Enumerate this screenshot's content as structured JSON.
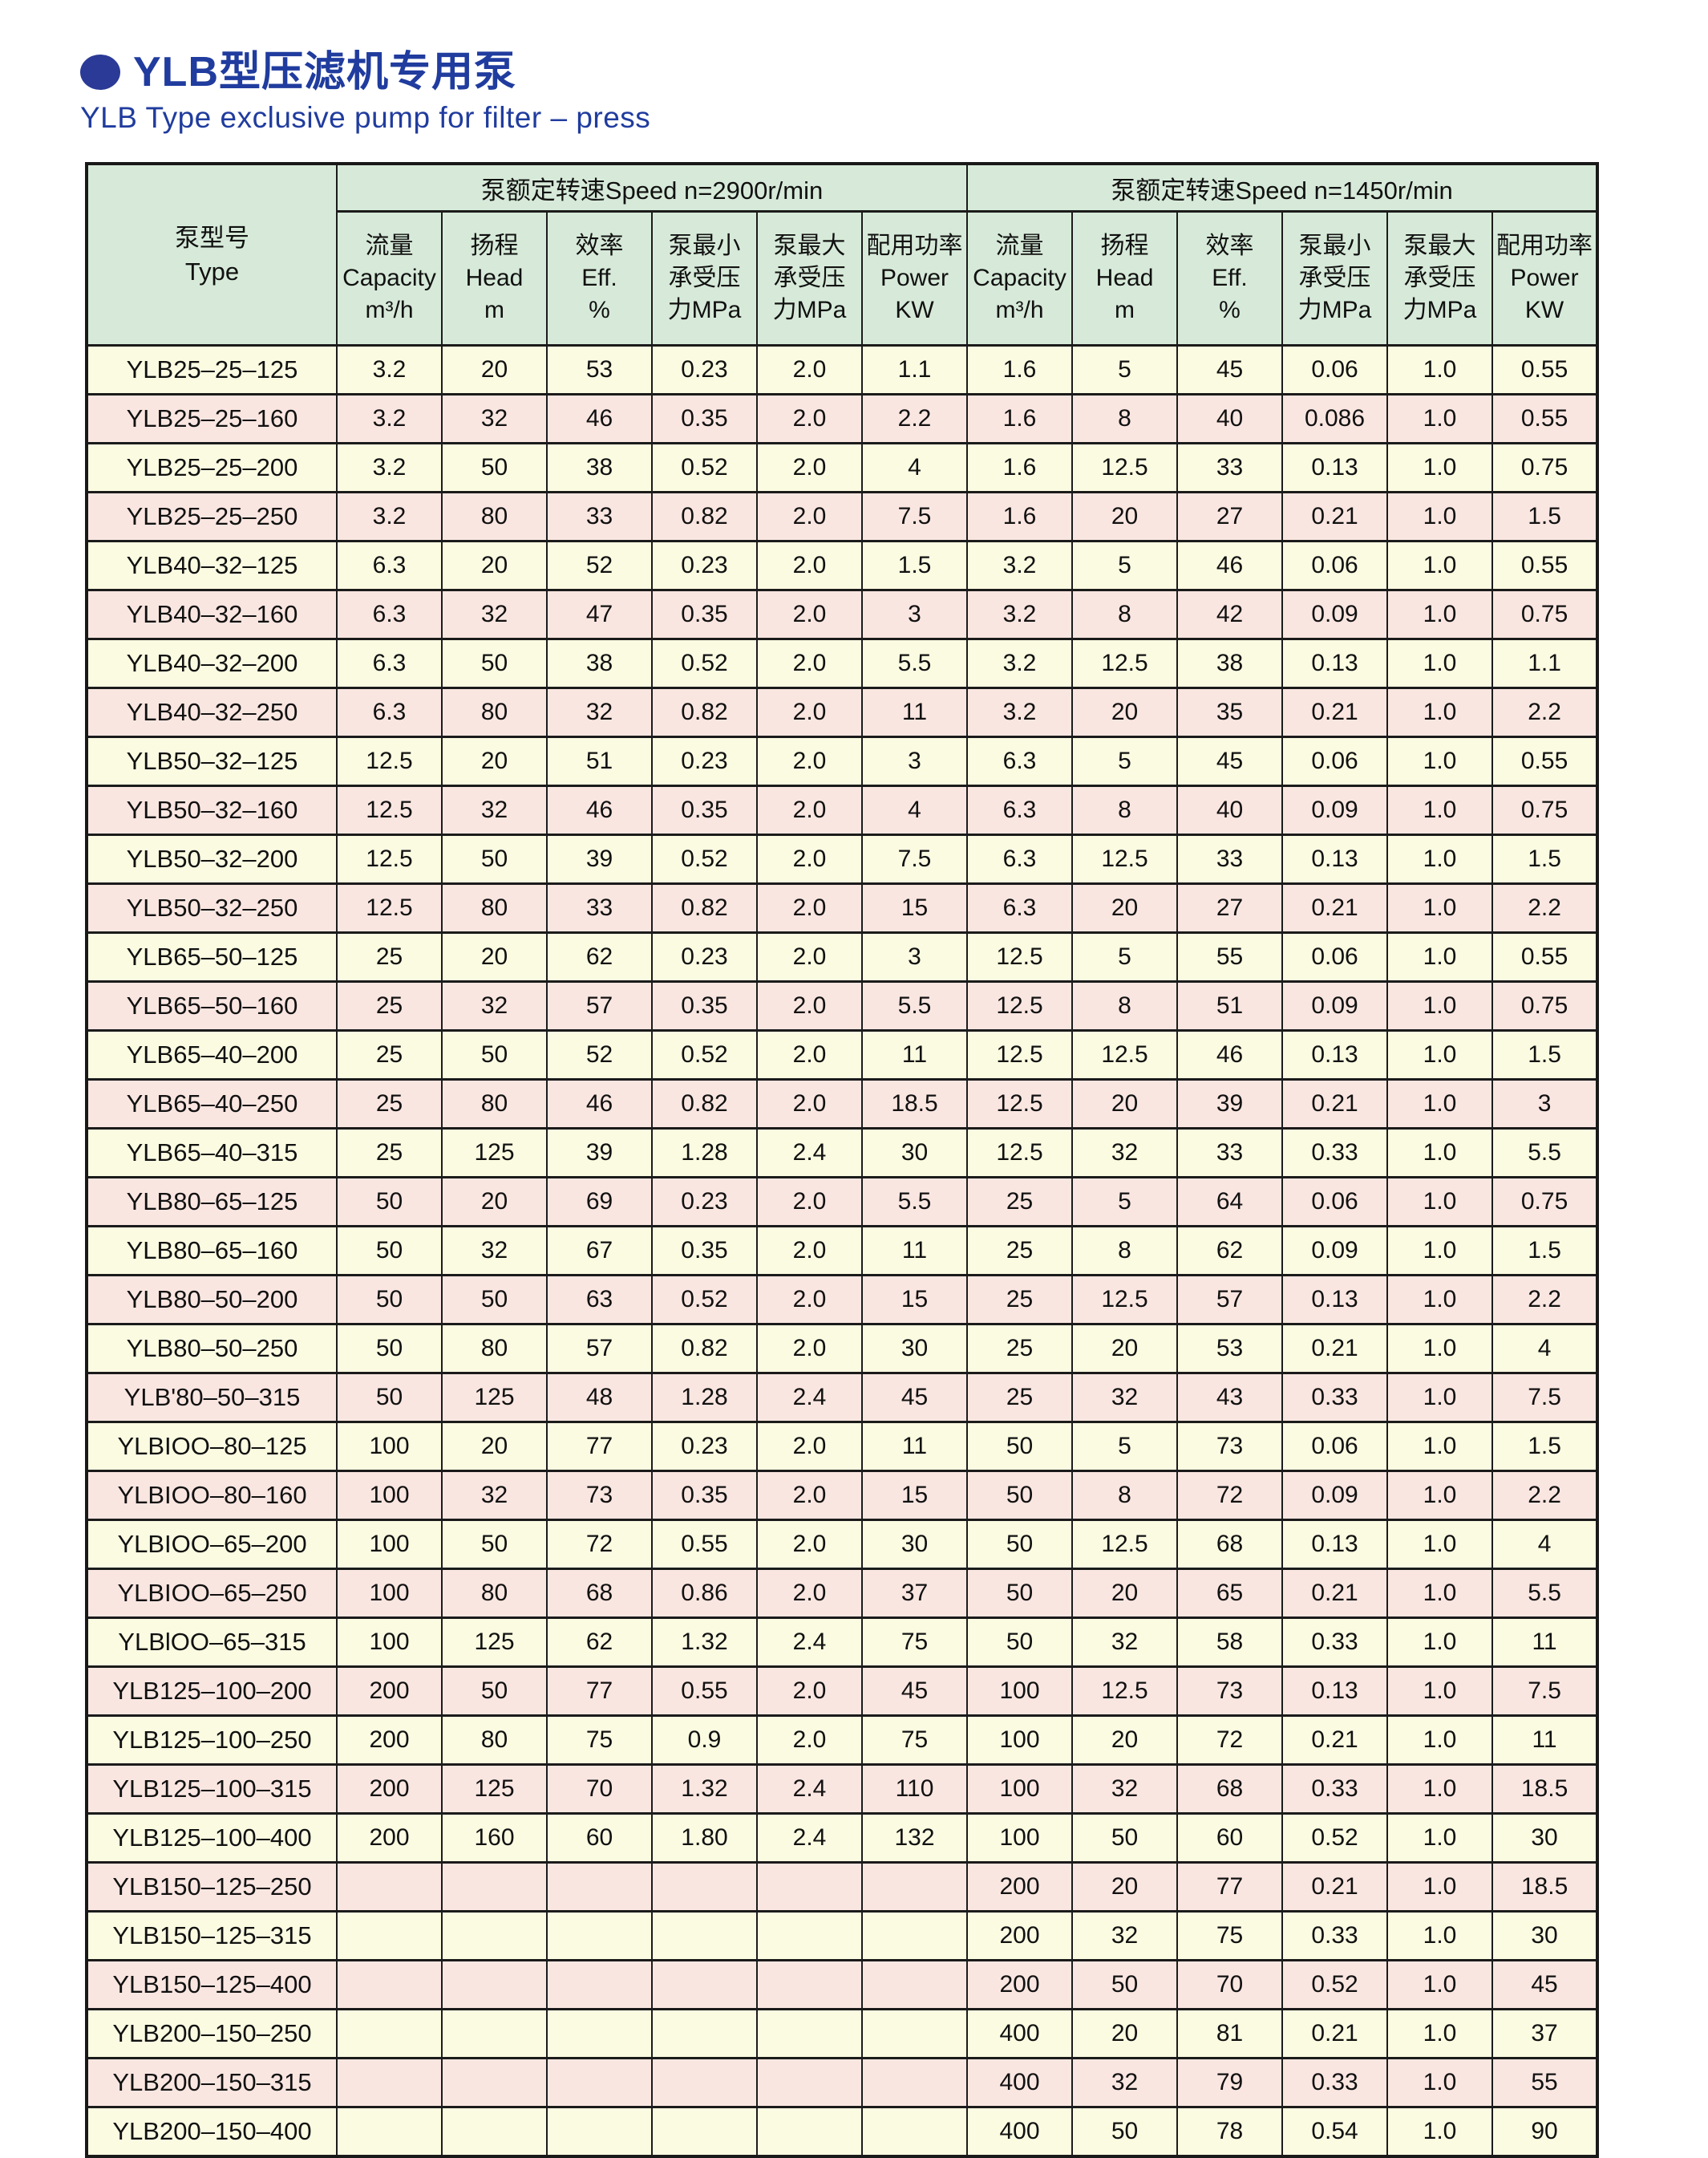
{
  "header": {
    "title_zh": "YLB型压滤机专用泵",
    "title_en": "YLB Type exclusive pump for filter – press",
    "title_color": "#203c9e",
    "bullet_icon": "blue-sphere-bullet"
  },
  "colors": {
    "header_green": "#d7ead9",
    "row_cream": "#fbfbe2",
    "row_pink": "#fae6e1",
    "border": "#1b1b1b",
    "title_blue": "#203c9e"
  },
  "table": {
    "type_header": {
      "zh": "泵型号",
      "en": "Type"
    },
    "groups": [
      {
        "key": "2900",
        "label": "泵额定转速Speed n=2900r/min"
      },
      {
        "key": "1450",
        "label": "泵额定转速Speed n=1450r/min"
      }
    ],
    "columns": [
      {
        "key": "capacity",
        "lines": [
          "流量",
          "Capacity",
          "m³/h"
        ]
      },
      {
        "key": "head",
        "lines": [
          "扬程",
          "Head",
          "m"
        ]
      },
      {
        "key": "eff",
        "lines": [
          "效率",
          "Eff.",
          "%"
        ]
      },
      {
        "key": "min-pressure",
        "lines": [
          "泵最小",
          "承受压",
          "力MPa"
        ]
      },
      {
        "key": "max-pressure",
        "lines": [
          "泵最大",
          "承受压",
          "力MPa"
        ]
      },
      {
        "key": "power",
        "lines": [
          "配用功率",
          "Power",
          "KW"
        ]
      }
    ],
    "rows": [
      {
        "type": "YLB25–25–125",
        "s2900": [
          "3.2",
          "20",
          "53",
          "0.23",
          "2.0",
          "1.1"
        ],
        "s1450": [
          "1.6",
          "5",
          "45",
          "0.06",
          "1.0",
          "0.55"
        ]
      },
      {
        "type": "YLB25–25–160",
        "s2900": [
          "3.2",
          "32",
          "46",
          "0.35",
          "2.0",
          "2.2"
        ],
        "s1450": [
          "1.6",
          "8",
          "40",
          "0.086",
          "1.0",
          "0.55"
        ]
      },
      {
        "type": "YLB25–25–200",
        "s2900": [
          "3.2",
          "50",
          "38",
          "0.52",
          "2.0",
          "4"
        ],
        "s1450": [
          "1.6",
          "12.5",
          "33",
          "0.13",
          "1.0",
          "0.75"
        ]
      },
      {
        "type": "YLB25–25–250",
        "s2900": [
          "3.2",
          "80",
          "33",
          "0.82",
          "2.0",
          "7.5"
        ],
        "s1450": [
          "1.6",
          "20",
          "27",
          "0.21",
          "1.0",
          "1.5"
        ]
      },
      {
        "type": "YLB40–32–125",
        "s2900": [
          "6.3",
          "20",
          "52",
          "0.23",
          "2.0",
          "1.5"
        ],
        "s1450": [
          "3.2",
          "5",
          "46",
          "0.06",
          "1.0",
          "0.55"
        ]
      },
      {
        "type": "YLB40–32–160",
        "s2900": [
          "6.3",
          "32",
          "47",
          "0.35",
          "2.0",
          "3"
        ],
        "s1450": [
          "3.2",
          "8",
          "42",
          "0.09",
          "1.0",
          "0.75"
        ]
      },
      {
        "type": "YLB40–32–200",
        "s2900": [
          "6.3",
          "50",
          "38",
          "0.52",
          "2.0",
          "5.5"
        ],
        "s1450": [
          "3.2",
          "12.5",
          "38",
          "0.13",
          "1.0",
          "1.1"
        ]
      },
      {
        "type": "YLB40–32–250",
        "s2900": [
          "6.3",
          "80",
          "32",
          "0.82",
          "2.0",
          "11"
        ],
        "s1450": [
          "3.2",
          "20",
          "35",
          "0.21",
          "1.0",
          "2.2"
        ]
      },
      {
        "type": "YLB50–32–125",
        "s2900": [
          "12.5",
          "20",
          "51",
          "0.23",
          "2.0",
          "3"
        ],
        "s1450": [
          "6.3",
          "5",
          "45",
          "0.06",
          "1.0",
          "0.55"
        ]
      },
      {
        "type": "YLB50–32–160",
        "s2900": [
          "12.5",
          "32",
          "46",
          "0.35",
          "2.0",
          "4"
        ],
        "s1450": [
          "6.3",
          "8",
          "40",
          "0.09",
          "1.0",
          "0.75"
        ]
      },
      {
        "type": "YLB50–32–200",
        "s2900": [
          "12.5",
          "50",
          "39",
          "0.52",
          "2.0",
          "7.5"
        ],
        "s1450": [
          "6.3",
          "12.5",
          "33",
          "0.13",
          "1.0",
          "1.5"
        ]
      },
      {
        "type": "YLB50–32–250",
        "s2900": [
          "12.5",
          "80",
          "33",
          "0.82",
          "2.0",
          "15"
        ],
        "s1450": [
          "6.3",
          "20",
          "27",
          "0.21",
          "1.0",
          "2.2"
        ]
      },
      {
        "type": "YLB65–50–125",
        "s2900": [
          "25",
          "20",
          "62",
          "0.23",
          "2.0",
          "3"
        ],
        "s1450": [
          "12.5",
          "5",
          "55",
          "0.06",
          "1.0",
          "0.55"
        ]
      },
      {
        "type": "YLB65–50–160",
        "s2900": [
          "25",
          "32",
          "57",
          "0.35",
          "2.0",
          "5.5"
        ],
        "s1450": [
          "12.5",
          "8",
          "51",
          "0.09",
          "1.0",
          "0.75"
        ]
      },
      {
        "type": "YLB65–40–200",
        "s2900": [
          "25",
          "50",
          "52",
          "0.52",
          "2.0",
          "11"
        ],
        "s1450": [
          "12.5",
          "12.5",
          "46",
          "0.13",
          "1.0",
          "1.5"
        ]
      },
      {
        "type": "YLB65–40–250",
        "s2900": [
          "25",
          "80",
          "46",
          "0.82",
          "2.0",
          "18.5"
        ],
        "s1450": [
          "12.5",
          "20",
          "39",
          "0.21",
          "1.0",
          "3"
        ]
      },
      {
        "type": "YLB65–40–315",
        "s2900": [
          "25",
          "125",
          "39",
          "1.28",
          "2.4",
          "30"
        ],
        "s1450": [
          "12.5",
          "32",
          "33",
          "0.33",
          "1.0",
          "5.5"
        ]
      },
      {
        "type": "YLB80–65–125",
        "s2900": [
          "50",
          "20",
          "69",
          "0.23",
          "2.0",
          "5.5"
        ],
        "s1450": [
          "25",
          "5",
          "64",
          "0.06",
          "1.0",
          "0.75"
        ]
      },
      {
        "type": "YLB80–65–160",
        "s2900": [
          "50",
          "32",
          "67",
          "0.35",
          "2.0",
          "11"
        ],
        "s1450": [
          "25",
          "8",
          "62",
          "0.09",
          "1.0",
          "1.5"
        ]
      },
      {
        "type": "YLB80–50–200",
        "s2900": [
          "50",
          "50",
          "63",
          "0.52",
          "2.0",
          "15"
        ],
        "s1450": [
          "25",
          "12.5",
          "57",
          "0.13",
          "1.0",
          "2.2"
        ]
      },
      {
        "type": "YLB80–50–250",
        "s2900": [
          "50",
          "80",
          "57",
          "0.82",
          "2.0",
          "30"
        ],
        "s1450": [
          "25",
          "20",
          "53",
          "0.21",
          "1.0",
          "4"
        ]
      },
      {
        "type": "YLB'80–50–315",
        "s2900": [
          "50",
          "125",
          "48",
          "1.28",
          "2.4",
          "45"
        ],
        "s1450": [
          "25",
          "32",
          "43",
          "0.33",
          "1.0",
          "7.5"
        ]
      },
      {
        "type": "YLBIOO–80–125",
        "s2900": [
          "100",
          "20",
          "77",
          "0.23",
          "2.0",
          "11"
        ],
        "s1450": [
          "50",
          "5",
          "73",
          "0.06",
          "1.0",
          "1.5"
        ]
      },
      {
        "type": "YLBIOO–80–160",
        "s2900": [
          "100",
          "32",
          "73",
          "0.35",
          "2.0",
          "15"
        ],
        "s1450": [
          "50",
          "8",
          "72",
          "0.09",
          "1.0",
          "2.2"
        ]
      },
      {
        "type": "YLBIOO–65–200",
        "s2900": [
          "100",
          "50",
          "72",
          "0.55",
          "2.0",
          "30"
        ],
        "s1450": [
          "50",
          "12.5",
          "68",
          "0.13",
          "1.0",
          "4"
        ]
      },
      {
        "type": "YLBIOO–65–250",
        "s2900": [
          "100",
          "80",
          "68",
          "0.86",
          "2.0",
          "37"
        ],
        "s1450": [
          "50",
          "20",
          "65",
          "0.21",
          "1.0",
          "5.5"
        ]
      },
      {
        "type": "YLBlOO–65–315",
        "s2900": [
          "100",
          "125",
          "62",
          "1.32",
          "2.4",
          "75"
        ],
        "s1450": [
          "50",
          "32",
          "58",
          "0.33",
          "1.0",
          "11"
        ]
      },
      {
        "type": "YLB125–100–200",
        "s2900": [
          "200",
          "50",
          "77",
          "0.55",
          "2.0",
          "45"
        ],
        "s1450": [
          "100",
          "12.5",
          "73",
          "0.13",
          "1.0",
          "7.5"
        ]
      },
      {
        "type": "YLB125–100–250",
        "s2900": [
          "200",
          "80",
          "75",
          "0.9",
          "2.0",
          "75"
        ],
        "s1450": [
          "100",
          "20",
          "72",
          "0.21",
          "1.0",
          "11"
        ]
      },
      {
        "type": "YLB125–100–315",
        "s2900": [
          "200",
          "125",
          "70",
          "1.32",
          "2.4",
          "110"
        ],
        "s1450": [
          "100",
          "32",
          "68",
          "0.33",
          "1.0",
          "18.5"
        ]
      },
      {
        "type": "YLB125–100–400",
        "s2900": [
          "200",
          "160",
          "60",
          "1.80",
          "2.4",
          "132"
        ],
        "s1450": [
          "100",
          "50",
          "60",
          "0.52",
          "1.0",
          "30"
        ]
      },
      {
        "type": "YLB150–125–250",
        "s2900": [
          "",
          "",
          "",
          "",
          "",
          ""
        ],
        "s1450": [
          "200",
          "20",
          "77",
          "0.21",
          "1.0",
          "18.5"
        ]
      },
      {
        "type": "YLB150–125–315",
        "s2900": [
          "",
          "",
          "",
          "",
          "",
          ""
        ],
        "s1450": [
          "200",
          "32",
          "75",
          "0.33",
          "1.0",
          "30"
        ]
      },
      {
        "type": "YLB150–125–400",
        "s2900": [
          "",
          "",
          "",
          "",
          "",
          ""
        ],
        "s1450": [
          "200",
          "50",
          "70",
          "0.52",
          "1.0",
          "45"
        ]
      },
      {
        "type": "YLB200–150–250",
        "s2900": [
          "",
          "",
          "",
          "",
          "",
          ""
        ],
        "s1450": [
          "400",
          "20",
          "81",
          "0.21",
          "1.0",
          "37"
        ]
      },
      {
        "type": "YLB200–150–315",
        "s2900": [
          "",
          "",
          "",
          "",
          "",
          ""
        ],
        "s1450": [
          "400",
          "32",
          "79",
          "0.33",
          "1.0",
          "55"
        ]
      },
      {
        "type": "YLB200–150–400",
        "s2900": [
          "",
          "",
          "",
          "",
          "",
          ""
        ],
        "s1450": [
          "400",
          "50",
          "78",
          "0.54",
          "1.0",
          "90"
        ]
      }
    ]
  }
}
